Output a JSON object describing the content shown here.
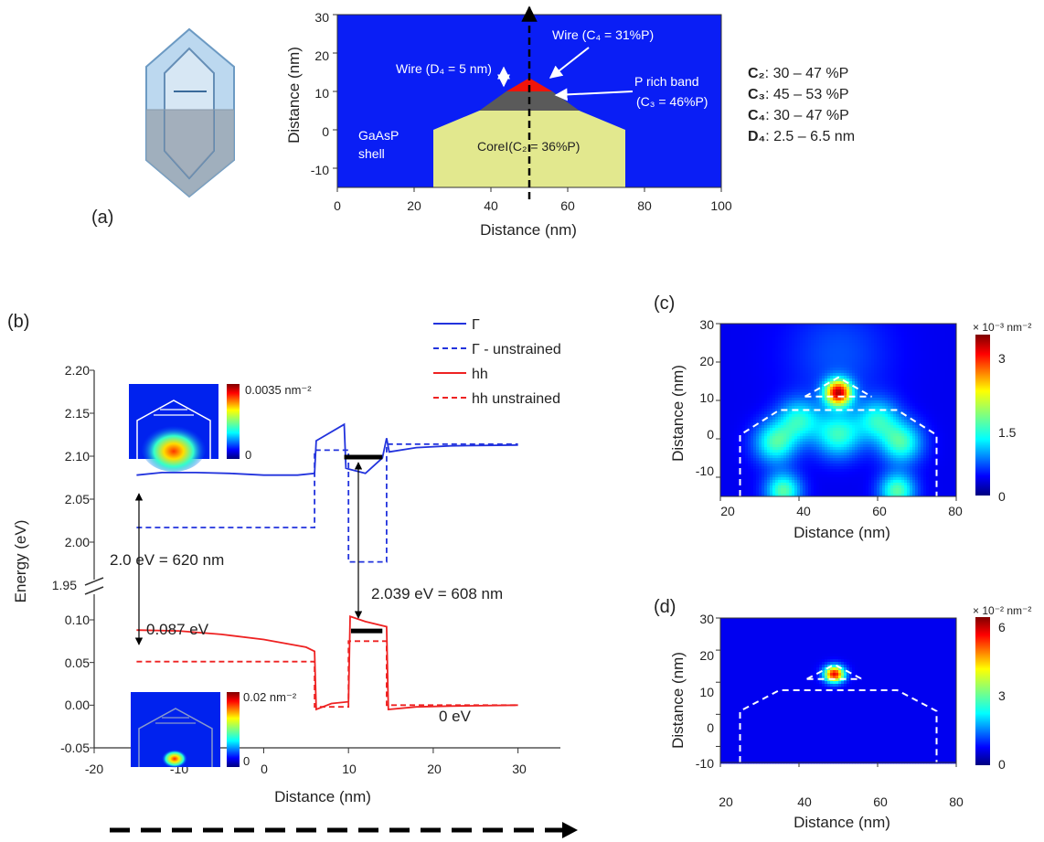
{
  "panel_labels": {
    "a": "(a)",
    "b": "(b)",
    "c": "(c)",
    "d": "(d)"
  },
  "panel_a": {
    "xlabel": "Distance (nm)",
    "ylabel": "Distance (nm)",
    "xticks": [
      "0",
      "20",
      "40",
      "60",
      "80",
      "100"
    ],
    "yticks": [
      "30",
      "20",
      "10",
      "0",
      "-10"
    ],
    "labels": {
      "wire_c4": "Wire (C₄ = 31%P)",
      "wire_d4": "Wire (D₄ = 5 nm)",
      "p_rich_1": "P rich band",
      "p_rich_2": "(C₃ = 46%P)",
      "shell_1": "GaAsP",
      "shell_2": "shell",
      "core": "CoreI(C₂ = 36%P)"
    },
    "ranges": [
      {
        "key": "C₂",
        "value": ": 30 – 47 %P"
      },
      {
        "key": "C₃",
        "value": ": 45 – 53 %P"
      },
      {
        "key": "C₄",
        "value": ": 30 – 47 %P"
      },
      {
        "key": "D₄",
        "value": ": 2.5 – 6.5 nm"
      }
    ],
    "colors": {
      "shell": "#0a1ef5",
      "core": "#e2e88e",
      "band": "#5a5a5a",
      "wire": "#f0140a"
    }
  },
  "panel_b": {
    "xlabel": "Distance (nm)",
    "ylabel": "Energy (eV)",
    "xticks": [
      "-20",
      "-10",
      "0",
      "10",
      "20",
      "30"
    ],
    "yticks_upper": [
      "2.20",
      "2.15",
      "2.10",
      "2.05",
      "2.00",
      "1.95"
    ],
    "yticks_lower": [
      "0.10",
      "0.05",
      "0.00",
      "-0.05"
    ],
    "legend": [
      "Γ",
      "Γ - unstrained",
      "hh",
      "hh unstrained"
    ],
    "annotations": {
      "gap1": "2.0 eV = 620 nm",
      "gap2": "2.039 eV = 608 nm",
      "hh_peak": "0.087 eV",
      "zero": "0 eV",
      "cb_scale": "0.0035 nm⁻²",
      "cb_zero": "0",
      "vb_scale": "0.02 nm⁻²",
      "vb_zero": "0"
    }
  },
  "panel_c": {
    "xlabel": "Distance (nm)",
    "ylabel": "Distance (nm)",
    "xticks": [
      "20",
      "40",
      "60",
      "80"
    ],
    "yticks": [
      "30",
      "20",
      "10",
      "0",
      "-10"
    ],
    "scale_label": "× 10⁻³ nm⁻²",
    "colorbar_ticks": [
      "3",
      "1.5",
      "0"
    ]
  },
  "panel_d": {
    "xlabel": "Distance (nm)",
    "ylabel": "Distance (nm)",
    "xticks": [
      "20",
      "40",
      "60",
      "80"
    ],
    "yticks": [
      "30",
      "20",
      "10",
      "0",
      "-10"
    ],
    "scale_label": "× 10⁻² nm⁻²",
    "colorbar_ticks": [
      "6",
      "3",
      "0"
    ]
  },
  "chart_data": [
    {
      "type": "heatmap",
      "panel": "a",
      "xlim": [
        0,
        100
      ],
      "ylim": [
        -15,
        30
      ],
      "regions": [
        {
          "name": "GaAsP shell",
          "composition_pct_P": null
        },
        {
          "name": "Core",
          "composition_pct_P": 36
        },
        {
          "name": "P rich band",
          "composition_pct_P": 46
        },
        {
          "name": "Wire",
          "composition_pct_P": 31,
          "thickness_nm": 5
        }
      ],
      "core_polygon": [
        [
          25,
          -15
        ],
        [
          25,
          0
        ],
        [
          37,
          5
        ],
        [
          63,
          5
        ],
        [
          75,
          0
        ],
        [
          75,
          -15
        ]
      ],
      "band_polygon": [
        [
          37,
          5
        ],
        [
          44,
          10
        ],
        [
          56,
          10
        ],
        [
          63,
          5
        ]
      ],
      "wire_polygon": [
        [
          44,
          10
        ],
        [
          50,
          13.5
        ],
        [
          56,
          10
        ]
      ]
    },
    {
      "type": "line",
      "panel": "b",
      "xlim": [
        -20,
        35
      ],
      "ylim_upper": [
        1.95,
        2.2
      ],
      "ylim_lower": [
        -0.05,
        0.13
      ],
      "series": [
        {
          "name": "Γ",
          "segment": "upper",
          "points": [
            [
              -15,
              2.078
            ],
            [
              -12,
              2.081
            ],
            [
              -8,
              2.081
            ],
            [
              -4,
              2.08
            ],
            [
              0,
              2.078
            ],
            [
              4,
              2.078
            ],
            [
              6,
              2.08
            ],
            [
              6.2,
              2.118
            ],
            [
              9.5,
              2.137
            ],
            [
              9.7,
              2.086
            ],
            [
              12,
              2.08
            ],
            [
              14,
              2.098
            ],
            [
              14.5,
              2.121
            ],
            [
              14.8,
              2.105
            ],
            [
              18,
              2.11
            ],
            [
              22,
              2.112
            ],
            [
              30,
              2.113
            ]
          ]
        },
        {
          "name": "Γ - unstrained",
          "segment": "upper",
          "points": [
            [
              -15,
              2.017
            ],
            [
              6,
              2.017
            ],
            [
              6,
              2.107
            ],
            [
              10,
              2.107
            ],
            [
              10,
              1.977
            ],
            [
              14.5,
              1.977
            ],
            [
              14.5,
              2.114
            ],
            [
              30,
              2.114
            ]
          ]
        },
        {
          "name": "hh",
          "segment": "lower",
          "points": [
            [
              -15,
              0.088
            ],
            [
              -10,
              0.087
            ],
            [
              -5,
              0.083
            ],
            [
              0,
              0.077
            ],
            [
              5,
              0.068
            ],
            [
              6,
              0.063
            ],
            [
              6.2,
              -0.005
            ],
            [
              8,
              0.002
            ],
            [
              10,
              0.004
            ],
            [
              10.2,
              0.104
            ],
            [
              12,
              0.098
            ],
            [
              14.5,
              0.092
            ],
            [
              14.7,
              -0.005
            ],
            [
              18,
              -0.002
            ],
            [
              22,
              -0.001
            ],
            [
              30,
              0.0
            ]
          ]
        },
        {
          "name": "hh unstrained",
          "segment": "lower",
          "points": [
            [
              -15,
              0.051
            ],
            [
              6,
              0.051
            ],
            [
              6,
              -0.002
            ],
            [
              10,
              -0.002
            ],
            [
              10,
              0.075
            ],
            [
              14.5,
              0.075
            ],
            [
              14.5,
              0.0
            ],
            [
              30,
              0.0
            ]
          ]
        }
      ],
      "confined_levels": [
        {
          "segment": "upper",
          "x": [
            9.5,
            14
          ],
          "y": 2.099
        },
        {
          "segment": "lower",
          "x": [
            10.3,
            14
          ],
          "y": 0.087
        }
      ]
    },
    {
      "type": "heatmap",
      "panel": "c",
      "xlim": [
        20,
        80
      ],
      "ylim": [
        -15,
        30
      ],
      "max": 3.3,
      "peaks": [
        {
          "x": 50,
          "y": 12,
          "a": 1.0,
          "s": 2.4
        },
        {
          "x": 40,
          "y": 5,
          "a": 0.35,
          "s": 3.8
        },
        {
          "x": 60,
          "y": 5,
          "a": 0.35,
          "s": 3.8
        },
        {
          "x": 50,
          "y": 1,
          "a": 0.4,
          "s": 4.2
        },
        {
          "x": 34,
          "y": -1,
          "a": 0.42,
          "s": 3.8
        },
        {
          "x": 66,
          "y": -1,
          "a": 0.42,
          "s": 3.8
        },
        {
          "x": 36,
          "y": -13.5,
          "a": 0.45,
          "s": 3.2
        },
        {
          "x": 65,
          "y": -13.5,
          "a": 0.45,
          "s": 3.2
        },
        {
          "x": 50,
          "y": 22,
          "a": 0.12,
          "s": 9
        }
      ],
      "outline": [
        [
          25,
          -15
        ],
        [
          25,
          1
        ],
        [
          35,
          7.5
        ],
        [
          65,
          7.5
        ],
        [
          75,
          1
        ],
        [
          75,
          -15
        ]
      ],
      "band": [
        [
          41.5,
          11
        ],
        [
          50,
          16
        ],
        [
          58.5,
          11
        ]
      ]
    },
    {
      "type": "heatmap",
      "panel": "d",
      "xlim": [
        20,
        80
      ],
      "ylim": [
        -15,
        30
      ],
      "max": 6.8,
      "peaks": [
        {
          "x": 49,
          "y": 12.5,
          "a": 1.0,
          "s": 1.8
        }
      ],
      "outline": [
        [
          25,
          -15
        ],
        [
          25,
          1
        ],
        [
          35,
          7.5
        ],
        [
          65,
          7.5
        ],
        [
          75,
          1
        ],
        [
          75,
          -15
        ]
      ],
      "band": [
        [
          42,
          11
        ],
        [
          49,
          15.5
        ],
        [
          56,
          11
        ]
      ]
    }
  ]
}
